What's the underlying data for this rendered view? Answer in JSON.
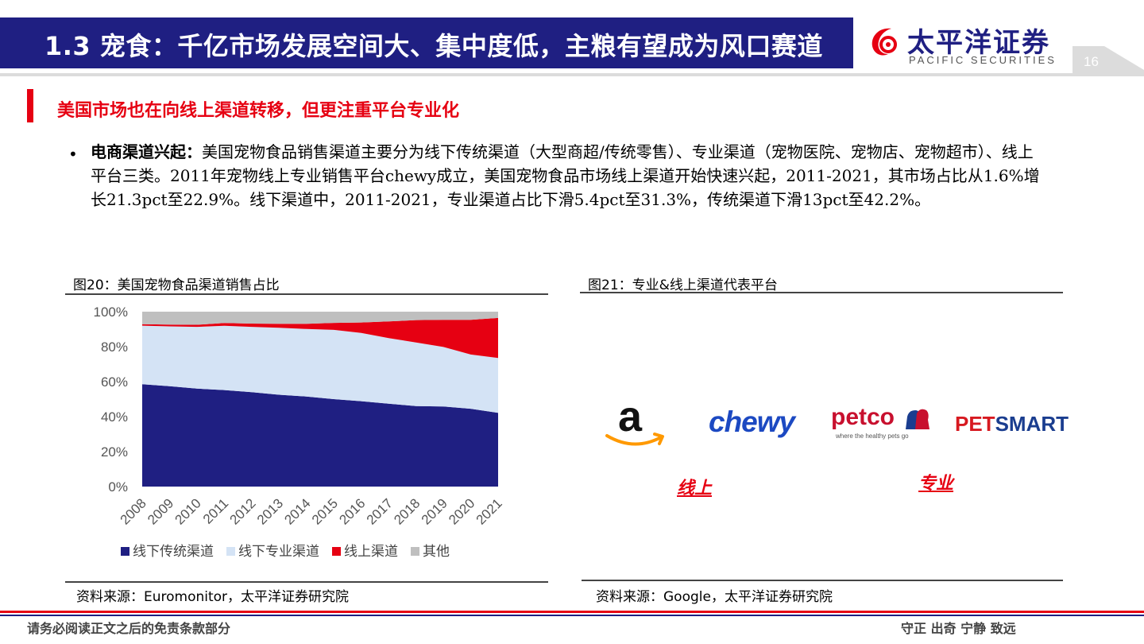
{
  "header": {
    "title": "1.3 宠食：千亿市场发展空间大、集中度低，主粮有望成为风口赛道",
    "logo_cn": "太平洋证券",
    "logo_en": "PACIFIC SECURITIES",
    "page_number": "16",
    "colors": {
      "brand_navy": "#1f1f82",
      "accent_red": "#e60012"
    }
  },
  "section": {
    "title": "美国市场也在向线上渠道转移，但更注重平台专业化"
  },
  "body": {
    "lead": "电商渠道兴起：",
    "text": "美国宠物食品销售渠道主要分为线下传统渠道（大型商超/传统零售）、专业渠道（宠物医院、宠物店、宠物超市）、线上平台三类。2011年宠物线上专业销售平台chewy成立，美国宠物食品市场线上渠道开始快速兴起，2011-2021，其市场占比从1.6%增长21.3pct至22.9%。线下渠道中，2011-2021，专业渠道占比下滑5.4pct至31.3%，传统渠道下滑13pct至42.2%。"
  },
  "figure20": {
    "caption": "图20：美国宠物食品渠道销售占比",
    "source": "资料来源：Euromonitor，太平洋证券研究院"
  },
  "figure21": {
    "caption": "图21：专业&线上渠道代表平台",
    "source": "资料来源：Google，太平洋证券研究院",
    "platforms": {
      "chewy": "chewy",
      "petco": "petco",
      "petco_tagline": "where the healthy pets go",
      "petsmart_a": "PET",
      "petsmart_b": "SMART"
    },
    "online_label": "线上",
    "specialty_label": "专业",
    "logo_icons": [
      "amazon-logo",
      "chewy-logo",
      "petco-logo",
      "petsmart-logo"
    ]
  },
  "chart_data": {
    "type": "area",
    "stacked": true,
    "x": [
      "2008",
      "2009",
      "2010",
      "2011",
      "2012",
      "2013",
      "2014",
      "2015",
      "2016",
      "2017",
      "2018",
      "2019",
      "2020",
      "2021"
    ],
    "series": [
      {
        "name": "线下传统渠道",
        "color": "#1f1f82",
        "values": [
          58.5,
          57.4,
          56.0,
          55.2,
          54.0,
          52.5,
          51.5,
          50.0,
          48.8,
          47.4,
          46.0,
          45.8,
          44.5,
          42.2
        ]
      },
      {
        "name": "线下专业渠道",
        "color": "#d4e3f5",
        "values": [
          33.5,
          34.2,
          35.3,
          36.7,
          37.3,
          38.3,
          38.6,
          39.6,
          39.0,
          37.5,
          36.4,
          34.0,
          31.0,
          31.3
        ]
      },
      {
        "name": "线上渠道",
        "color": "#e60012",
        "values": [
          0.8,
          1.0,
          1.2,
          1.6,
          1.9,
          2.3,
          3.0,
          4.0,
          6.0,
          9.5,
          12.8,
          15.5,
          19.8,
          22.9
        ]
      },
      {
        "name": "其他",
        "color": "#bfbfbf",
        "values": [
          7.2,
          7.4,
          7.5,
          6.5,
          6.8,
          6.9,
          6.9,
          6.4,
          6.2,
          5.6,
          4.8,
          4.7,
          4.7,
          3.6
        ]
      }
    ],
    "y_ticks": [
      "0%",
      "20%",
      "40%",
      "60%",
      "80%",
      "100%"
    ],
    "ylim": [
      0,
      100
    ],
    "legend_position": "bottom"
  },
  "footer": {
    "disclaimer": "请务必阅读正文之后的免责条款部分",
    "motto": "守正 出奇 宁静 致远"
  }
}
